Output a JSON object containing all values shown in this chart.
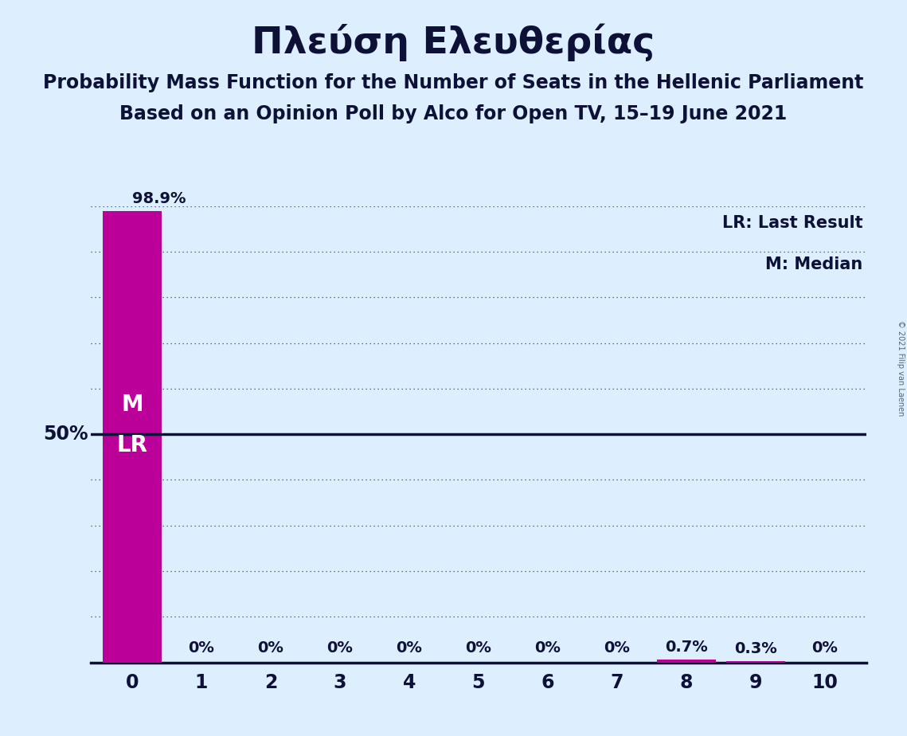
{
  "title": "Πλεύση Ελευθερίας",
  "subtitle1": "Probability Mass Function for the Number of Seats in the Hellenic Parliament",
  "subtitle2": "Based on an Opinion Poll by Alco for Open TV, 15–19 June 2021",
  "copyright": "© 2021 Filip van Laenen",
  "legend_lr": "LR: Last Result",
  "legend_m": "M: Median",
  "categories": [
    0,
    1,
    2,
    3,
    4,
    5,
    6,
    7,
    8,
    9,
    10
  ],
  "values": [
    98.9,
    0.0,
    0.0,
    0.0,
    0.0,
    0.0,
    0.0,
    0.0,
    0.7,
    0.3,
    0.0
  ],
  "bar_color": "#BB0099",
  "background_color": "#ddeeff",
  "text_color": "#0d1137",
  "fifty_pct_label": "50%",
  "median_seat": 0,
  "lr_seat": 0,
  "ylim_max": 100,
  "fifty_pct_line": 50,
  "grid_positions": [
    10,
    20,
    30,
    40,
    60,
    70,
    80,
    90,
    100
  ],
  "axis_color": "#0d1137",
  "title_fontsize": 34,
  "subtitle_fontsize": 17,
  "label_fontsize": 14,
  "tick_fontsize": 17,
  "bar_width": 0.85
}
